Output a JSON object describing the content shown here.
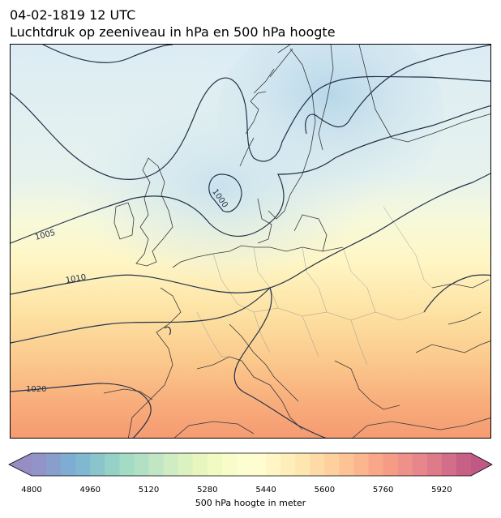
{
  "title": {
    "line1": "04-02-1819 12 UTC",
    "line2": "Luchtdruk op zeeniveau in hPa en 500 hPa hoogte"
  },
  "map": {
    "contour_color": "#24324a",
    "coast_color": "#3a3a3a",
    "contour_labels": {
      "c1000": "1000",
      "c1005": "1005",
      "c1010": "1010",
      "c1020": "1020"
    }
  },
  "colorbar": {
    "label": "500 hPa hoogte in meter",
    "min": 4800,
    "max": 6000,
    "tick_labels": [
      "4800",
      "4960",
      "5120",
      "5280",
      "5440",
      "5600",
      "5760",
      "5920"
    ],
    "colormap": [
      "#5e4fa2",
      "#3288bd",
      "#66c2a5",
      "#abdda4",
      "#e6f598",
      "#ffffbf",
      "#fee08b",
      "#fdae61",
      "#f46d43",
      "#d53e4f",
      "#9e0142"
    ],
    "alpha": 0.65
  }
}
